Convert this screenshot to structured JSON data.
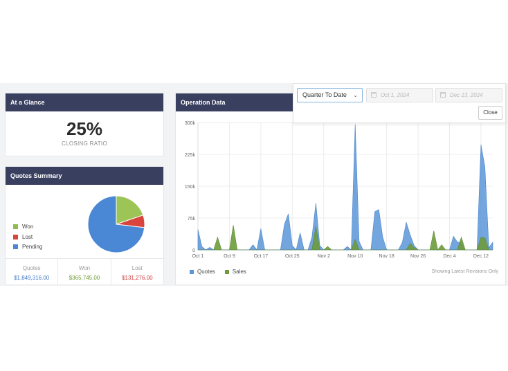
{
  "glance": {
    "title": "At a Glance",
    "ratio": "25%",
    "ratio_label": "CLOSING RATIO"
  },
  "quotes_summary": {
    "title": "Quotes Summary",
    "legend": [
      {
        "label": "Won",
        "color": "#8fbc50"
      },
      {
        "label": "Lost",
        "color": "#d9443c"
      },
      {
        "label": "Pending",
        "color": "#4a87d4"
      }
    ],
    "stats": [
      {
        "label": "Quotes",
        "value": "$1,849,316.00",
        "color": "#3d78c7"
      },
      {
        "label": "Won",
        "value": "$365,745.00",
        "color": "#6a9a2e"
      },
      {
        "label": "Lost",
        "value": "$131,276.00",
        "color": "#c73a3a"
      }
    ]
  },
  "operation": {
    "title": "Operation Data",
    "revisions_note": "Showing Latest Revisions Only"
  },
  "date_filter": {
    "range": "Quarter To Date",
    "start_placeholder": "Oct 1, 2024",
    "end_placeholder": "Dec 13, 2024",
    "close_label": "Close"
  },
  "chart_data": [
    {
      "type": "pie",
      "categories": [
        "Won",
        "Lost",
        "Pending"
      ],
      "values": [
        365745,
        131276,
        1352295
      ],
      "colors": [
        "#9cc556",
        "#d9443c",
        "#4a87d4"
      ]
    },
    {
      "type": "area",
      "x_ticks": [
        "Oct 1",
        "Oct 9",
        "Oct 17",
        "Oct 25",
        "Nov 2",
        "Nov 10",
        "Nov 18",
        "Nov 26",
        "Dec 4",
        "Dec 12"
      ],
      "y_ticks": [
        "0",
        "75k",
        "150k",
        "225k",
        "300k"
      ],
      "ylim": [
        0,
        300000
      ],
      "x_days": 73,
      "series": [
        {
          "name": "Quotes",
          "color": "#5b95d8",
          "points": [
            [
              0,
              48000
            ],
            [
              1,
              8000
            ],
            [
              2,
              0
            ],
            [
              3,
              6000
            ],
            [
              4,
              0
            ],
            [
              5,
              0
            ],
            [
              6,
              0
            ],
            [
              7,
              0
            ],
            [
              8,
              0
            ],
            [
              9,
              0
            ],
            [
              10,
              0
            ],
            [
              11,
              0
            ],
            [
              12,
              0
            ],
            [
              13,
              0
            ],
            [
              14,
              12000
            ],
            [
              15,
              0
            ],
            [
              16,
              50000
            ],
            [
              17,
              0
            ],
            [
              18,
              0
            ],
            [
              19,
              0
            ],
            [
              20,
              0
            ],
            [
              21,
              0
            ],
            [
              22,
              60000
            ],
            [
              23,
              85000
            ],
            [
              24,
              10000
            ],
            [
              25,
              0
            ],
            [
              26,
              40000
            ],
            [
              27,
              0
            ],
            [
              28,
              0
            ],
            [
              29,
              30000
            ],
            [
              30,
              110000
            ],
            [
              31,
              10000
            ],
            [
              32,
              0
            ],
            [
              33,
              0
            ],
            [
              34,
              0
            ],
            [
              35,
              0
            ],
            [
              36,
              0
            ],
            [
              37,
              0
            ],
            [
              38,
              8000
            ],
            [
              39,
              0
            ],
            [
              40,
              295000
            ],
            [
              41,
              20000
            ],
            [
              42,
              0
            ],
            [
              43,
              0
            ],
            [
              44,
              0
            ],
            [
              45,
              90000
            ],
            [
              46,
              95000
            ],
            [
              47,
              30000
            ],
            [
              48,
              0
            ],
            [
              49,
              0
            ],
            [
              50,
              0
            ],
            [
              51,
              0
            ],
            [
              52,
              18000
            ],
            [
              53,
              65000
            ],
            [
              54,
              35000
            ],
            [
              55,
              10000
            ],
            [
              56,
              0
            ],
            [
              57,
              0
            ],
            [
              58,
              0
            ],
            [
              59,
              0
            ],
            [
              60,
              0
            ],
            [
              61,
              0
            ],
            [
              62,
              0
            ],
            [
              63,
              0
            ],
            [
              64,
              0
            ],
            [
              65,
              32000
            ],
            [
              66,
              18000
            ],
            [
              67,
              18000
            ],
            [
              68,
              0
            ],
            [
              69,
              0
            ],
            [
              70,
              0
            ],
            [
              71,
              0
            ],
            [
              72,
              248000
            ],
            [
              73,
              195000
            ],
            [
              74,
              5000
            ],
            [
              75,
              18000
            ]
          ]
        },
        {
          "name": "Sales",
          "color": "#6e9b3c",
          "points": [
            [
              0,
              0
            ],
            [
              1,
              0
            ],
            [
              2,
              0
            ],
            [
              3,
              0
            ],
            [
              4,
              0
            ],
            [
              5,
              30000
            ],
            [
              6,
              0
            ],
            [
              7,
              0
            ],
            [
              8,
              0
            ],
            [
              9,
              58000
            ],
            [
              10,
              0
            ],
            [
              11,
              0
            ],
            [
              12,
              0
            ],
            [
              13,
              0
            ],
            [
              14,
              0
            ],
            [
              15,
              0
            ],
            [
              16,
              0
            ],
            [
              17,
              0
            ],
            [
              18,
              0
            ],
            [
              19,
              0
            ],
            [
              20,
              0
            ],
            [
              21,
              0
            ],
            [
              22,
              0
            ],
            [
              23,
              0
            ],
            [
              24,
              0
            ],
            [
              25,
              0
            ],
            [
              26,
              0
            ],
            [
              27,
              0
            ],
            [
              28,
              0
            ],
            [
              29,
              0
            ],
            [
              30,
              55000
            ],
            [
              31,
              0
            ],
            [
              32,
              0
            ],
            [
              33,
              8000
            ],
            [
              34,
              0
            ],
            [
              35,
              0
            ],
            [
              36,
              0
            ],
            [
              37,
              0
            ],
            [
              38,
              0
            ],
            [
              39,
              0
            ],
            [
              40,
              25000
            ],
            [
              41,
              0
            ],
            [
              42,
              0
            ],
            [
              43,
              0
            ],
            [
              44,
              0
            ],
            [
              45,
              0
            ],
            [
              46,
              0
            ],
            [
              47,
              0
            ],
            [
              48,
              0
            ],
            [
              49,
              0
            ],
            [
              50,
              0
            ],
            [
              51,
              0
            ],
            [
              52,
              0
            ],
            [
              53,
              0
            ],
            [
              54,
              15000
            ],
            [
              55,
              5000
            ],
            [
              56,
              0
            ],
            [
              57,
              0
            ],
            [
              58,
              0
            ],
            [
              59,
              0
            ],
            [
              60,
              45000
            ],
            [
              61,
              0
            ],
            [
              62,
              12000
            ],
            [
              63,
              0
            ],
            [
              64,
              0
            ],
            [
              65,
              0
            ],
            [
              66,
              0
            ],
            [
              67,
              30000
            ],
            [
              68,
              0
            ],
            [
              69,
              0
            ],
            [
              70,
              0
            ],
            [
              71,
              0
            ],
            [
              72,
              30000
            ],
            [
              73,
              28000
            ],
            [
              74,
              0
            ],
            [
              75,
              0
            ]
          ]
        }
      ]
    }
  ]
}
